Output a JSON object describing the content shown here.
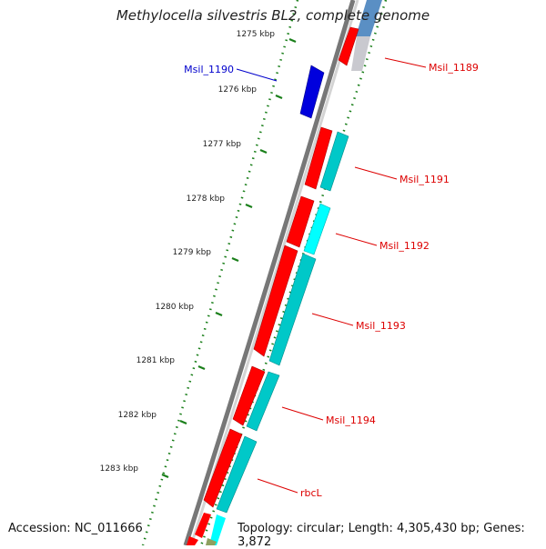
{
  "title": "Methylocella silvestris BL2, complete genome",
  "footer": {
    "accession": "Accession: NC_011666",
    "stats": "Topology: circular; Length: 4,305,430 bp; Genes: 3,872"
  },
  "colors": {
    "forward_gene": "#ff0000",
    "reverse_gene": "#0000dd",
    "cds_feature": "#00e0e0",
    "tick": "#1a7f1a",
    "backbone": "#8a8a8a",
    "label_forward": "#dd0000",
    "label_reverse": "#0000cc"
  },
  "scale_ticks": [
    {
      "label": "1275 kbp"
    },
    {
      "label": "1276 kbp"
    },
    {
      "label": "1277 kbp"
    },
    {
      "label": "1278 kbp"
    },
    {
      "label": "1279 kbp"
    },
    {
      "label": "1280 kbp"
    },
    {
      "label": "1281 kbp"
    },
    {
      "label": "1282 kbp"
    },
    {
      "label": "1283 kbp"
    }
  ],
  "genes": [
    {
      "name": "Msil_1189",
      "strand": "forward"
    },
    {
      "name": "Msil_1190",
      "strand": "reverse"
    },
    {
      "name": "Msil_1191",
      "strand": "forward"
    },
    {
      "name": "Msil_1192",
      "strand": "forward"
    },
    {
      "name": "Msil_1193",
      "strand": "forward"
    },
    {
      "name": "Msil_1194",
      "strand": "forward"
    },
    {
      "name": "rbcL",
      "strand": "forward"
    }
  ]
}
